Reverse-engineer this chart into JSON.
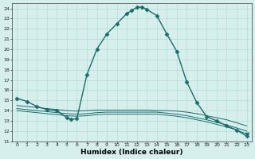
{
  "title": "",
  "xlabel": "Humidex (Indice chaleur)",
  "ylabel": "",
  "background_color": "#d6efec",
  "line_color": "#1a6b6b",
  "xlim": [
    -0.5,
    23.5
  ],
  "ylim": [
    11,
    24.5
  ],
  "yticks": [
    11,
    12,
    13,
    14,
    15,
    16,
    17,
    18,
    19,
    20,
    21,
    22,
    23,
    24
  ],
  "xticks": [
    0,
    1,
    2,
    3,
    4,
    5,
    6,
    7,
    8,
    9,
    10,
    11,
    12,
    13,
    14,
    15,
    16,
    17,
    18,
    19,
    20,
    21,
    22,
    23
  ],
  "series": [
    {
      "x": [
        0,
        1,
        2,
        3,
        4,
        5,
        5.4,
        6,
        7,
        8,
        9,
        10,
        11,
        11.5,
        12,
        12.5,
        13,
        14,
        15,
        16,
        17,
        18,
        19,
        20,
        21,
        22,
        23
      ],
      "y": [
        15.2,
        14.9,
        14.4,
        14.1,
        14.0,
        13.3,
        13.15,
        13.2,
        17.5,
        20.0,
        21.5,
        22.5,
        23.5,
        23.8,
        24.1,
        24.15,
        23.9,
        23.3,
        21.5,
        19.8,
        16.8,
        14.8,
        13.4,
        13.0,
        12.5,
        12.1,
        11.5
      ],
      "marker": "D",
      "markersize": 2.5,
      "linewidth": 1.0,
      "linestyle": "-",
      "markevery": null
    },
    {
      "x": [
        0,
        1,
        2,
        3,
        4,
        5,
        6,
        7,
        8,
        9,
        10,
        11,
        12,
        13,
        14,
        15,
        16,
        17,
        18,
        19,
        20,
        21,
        22,
        23
      ],
      "y": [
        14.5,
        14.4,
        14.3,
        14.2,
        14.1,
        14.0,
        13.95,
        14.0,
        14.05,
        14.05,
        14.05,
        14.05,
        14.05,
        14.05,
        14.0,
        14.0,
        13.95,
        13.85,
        13.7,
        13.5,
        13.3,
        13.1,
        12.8,
        12.5
      ],
      "marker": "",
      "markersize": 0,
      "linewidth": 0.7,
      "linestyle": "-",
      "markevery": null
    },
    {
      "x": [
        0,
        1,
        2,
        3,
        4,
        5,
        6,
        7,
        8,
        9,
        10,
        11,
        12,
        13,
        14,
        15,
        16,
        17,
        18,
        19,
        20,
        21,
        22,
        23
      ],
      "y": [
        14.2,
        14.1,
        14.0,
        13.9,
        13.8,
        13.7,
        13.65,
        13.7,
        13.8,
        13.85,
        13.85,
        13.85,
        13.85,
        13.85,
        13.85,
        13.75,
        13.65,
        13.5,
        13.3,
        13.1,
        12.85,
        12.6,
        12.3,
        12.0
      ],
      "marker": "",
      "markersize": 0,
      "linewidth": 0.7,
      "linestyle": "-",
      "markevery": null
    },
    {
      "x": [
        0,
        1,
        2,
        3,
        4,
        5,
        6,
        7,
        8,
        9,
        10,
        11,
        12,
        13,
        14,
        15,
        16,
        17,
        18,
        19,
        20,
        21,
        22,
        23
      ],
      "y": [
        14.0,
        13.9,
        13.8,
        13.7,
        13.6,
        13.5,
        13.45,
        13.5,
        13.6,
        13.65,
        13.65,
        13.65,
        13.65,
        13.65,
        13.65,
        13.55,
        13.45,
        13.3,
        13.1,
        12.9,
        12.65,
        12.4,
        12.1,
        11.7
      ],
      "marker": "v",
      "markersize": 3.5,
      "linewidth": 0.7,
      "linestyle": "-",
      "markevery": [
        23
      ]
    }
  ]
}
